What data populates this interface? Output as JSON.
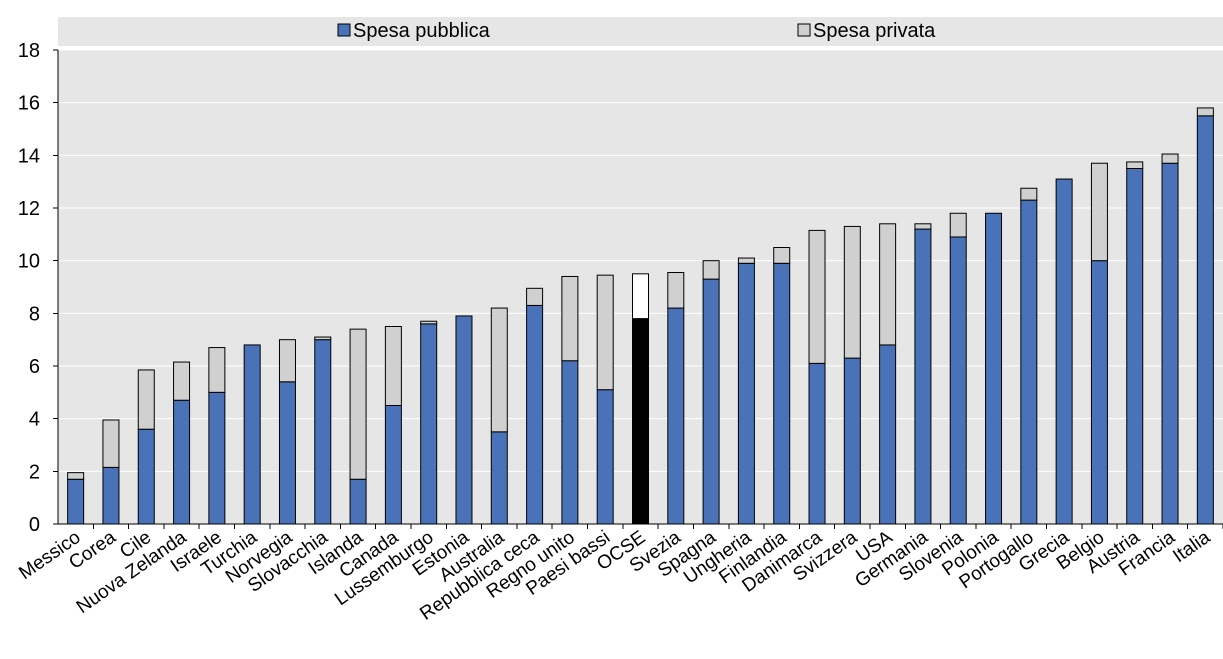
{
  "chart_data": {
    "type": "bar",
    "stacked": true,
    "legend_position": "top",
    "ylim": [
      0,
      18
    ],
    "yticks": [
      0,
      2,
      4,
      6,
      8,
      10,
      12,
      14,
      16,
      18
    ],
    "categories": [
      "Messico",
      "Corea",
      "Cile",
      "Nuova Zelanda",
      "Israele",
      "Turchia",
      "Norvegia",
      "Slovacchia",
      "Islanda",
      "Canada",
      "Lussemburgo",
      "Estonia",
      "Australia",
      "Repubblica ceca",
      "Regno unito",
      "Paesi bassi",
      "OCSE",
      "Svezia",
      "Spagna",
      "Ungheria",
      "Finlandia",
      "Danimarca",
      "Svizzera",
      "USA",
      "Germania",
      "Slovenia",
      "Polonia",
      "Portogallo",
      "Grecia",
      "Belgio",
      "Austria",
      "Francia",
      "Italia"
    ],
    "highlight_category": "OCSE",
    "series": [
      {
        "name": "Spesa pubblica",
        "color": "#4a72b8",
        "highlight_color": "#000000",
        "values": [
          1.7,
          2.15,
          3.6,
          4.7,
          5.0,
          6.8,
          5.4,
          7.0,
          1.7,
          4.5,
          7.6,
          7.9,
          3.5,
          8.3,
          6.2,
          5.1,
          7.8,
          8.2,
          9.3,
          9.9,
          9.9,
          6.1,
          6.3,
          6.8,
          11.2,
          10.9,
          11.8,
          12.3,
          13.1,
          10.0,
          13.5,
          13.7,
          15.5
        ]
      },
      {
        "name": "Spesa privata",
        "color": "#d0d0d0",
        "highlight_color": "#ffffff",
        "values": [
          0.25,
          1.8,
          2.25,
          1.45,
          1.7,
          0.0,
          1.6,
          0.1,
          5.7,
          3.0,
          0.1,
          0.0,
          4.7,
          0.65,
          3.2,
          4.35,
          1.7,
          1.35,
          0.7,
          0.2,
          0.6,
          5.05,
          5.0,
          4.6,
          0.2,
          0.9,
          0.0,
          0.45,
          0.0,
          3.7,
          0.25,
          0.35,
          0.3
        ]
      }
    ],
    "title": "",
    "xlabel": "",
    "ylabel": ""
  }
}
